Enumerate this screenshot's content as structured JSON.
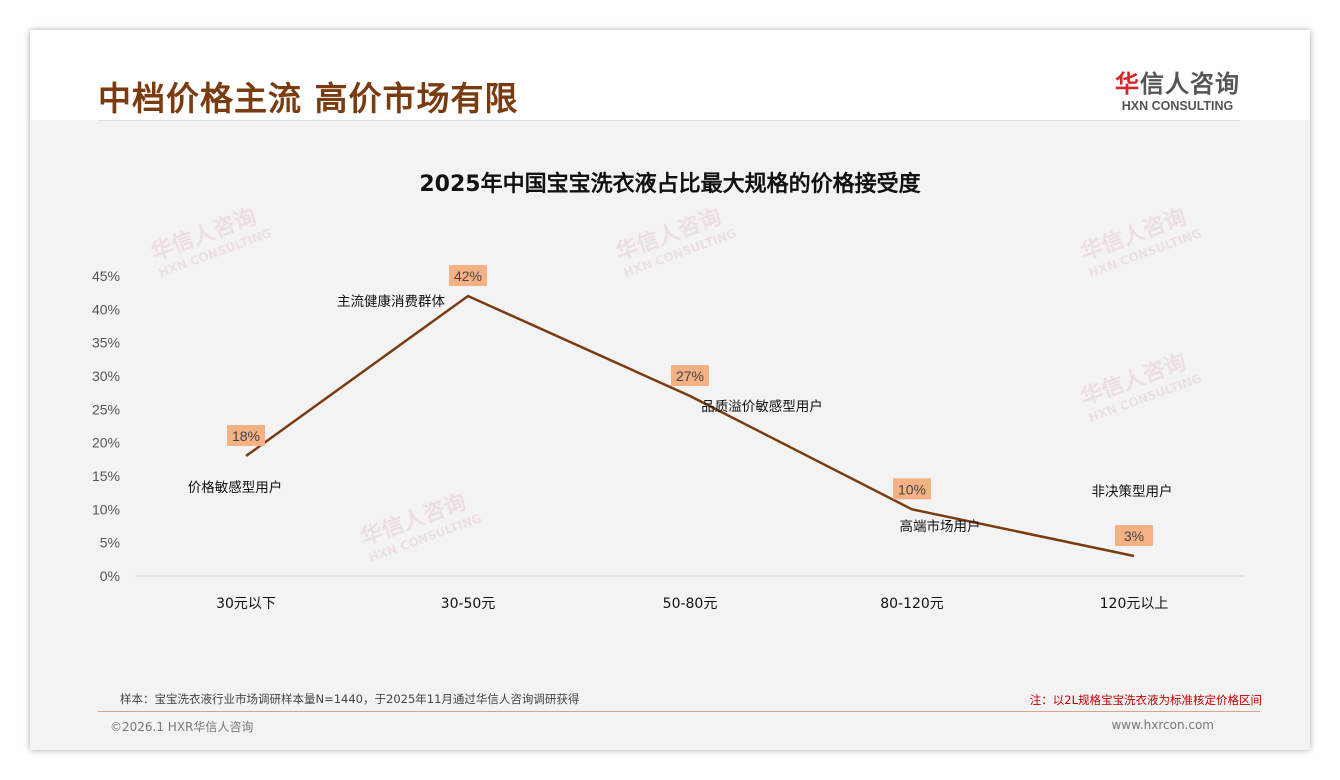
{
  "header": {
    "title": "中档价格主流 高价市场有限",
    "logo_cn_red": "华",
    "logo_cn": "信人咨询",
    "logo_en": "HXN CONSULTING"
  },
  "footer": {
    "sample": "样本：宝宝洗衣液行业市场调研样本量N=1440，于2025年11月通过华信人咨询调研获得",
    "note": "注：以2L规格宝宝洗衣液为标准核定价格区间",
    "copyright": "©2026.1 HXR华信人咨询",
    "site": "www.hxrcon.com"
  },
  "watermark": "华信人咨询 HXN CONSULTING",
  "colors": {
    "line": "#7a3b10",
    "label_bg": "#f4b183",
    "title": "#7a3b10"
  },
  "chart_data": {
    "type": "line",
    "title": "2025年中国宝宝洗衣液占比最大规格的价格接受度",
    "categories": [
      "30元以下",
      "30-50元",
      "50-80元",
      "80-120元",
      "120元以上"
    ],
    "values": [
      18,
      42,
      27,
      10,
      3
    ],
    "data_labels": [
      "18%",
      "42%",
      "27%",
      "10%",
      "3%"
    ],
    "annotations": [
      "价格敏感型用户",
      "主流健康消费群体",
      "品质溢价敏感型用户",
      "高端市场用户",
      "非决策型用户"
    ],
    "yticks": [
      "0%",
      "5%",
      "10%",
      "15%",
      "20%",
      "25%",
      "30%",
      "35%",
      "40%",
      "45%"
    ],
    "ylim": [
      0,
      45
    ],
    "xlabel": "",
    "ylabel": "",
    "grid": false
  }
}
